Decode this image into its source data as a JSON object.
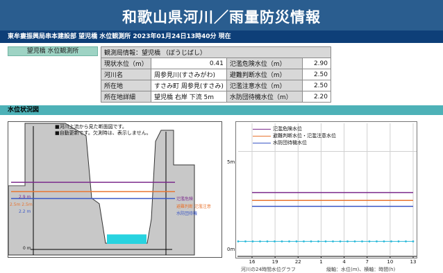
{
  "page": {
    "title": "和歌山県河川／雨量防災情報",
    "subtitle": "東牟婁振興局串本建設部 望児橋 水位観測所 2023年01月24日13時40分 現在"
  },
  "station_button": "望児橋 水位観測所",
  "info": {
    "header": "観測局情報：望児橋 （ぼうじばし）",
    "rows": [
      {
        "label": "現状水位（m）",
        "value": "0.41",
        "label2": "氾濫危険水位（m）",
        "value2": "2.90"
      },
      {
        "label": "河川名",
        "value": "周参見川(すさみがわ)",
        "label2": "避難判断水位（m）",
        "value2": "2.50"
      },
      {
        "label": "所在地",
        "value": "すさみ町 周参見(すさみ)",
        "label2": "氾濫注意水位（m）",
        "value2": "2.50"
      },
      {
        "label": "所在地詳細",
        "value": "望児橋 右岸 下流 5m",
        "label2": "水防団待機水位（m）",
        "value2": "2.20"
      }
    ]
  },
  "section_title": "水位状況図",
  "cross_section": {
    "notes": [
      "■河川上流から見た断面図です。",
      "■自動更新です。欠測時は、表示しません。"
    ],
    "levels": [
      {
        "y_label": "2.9 m",
        "name": "氾濫危険",
        "value": 2.9,
        "color": "#7b2a8c"
      },
      {
        "y_label": "2.5m 2.5m",
        "name": "避難判断 氾濫注意",
        "value": 2.5,
        "color": "#e8742f"
      },
      {
        "y_label": "2.2 m",
        "name": "水防団待機",
        "value": 2.2,
        "color": "#3a57c6"
      }
    ],
    "zero_label": "0 m",
    "water_level": 0.41,
    "water_color": "#28d3e0"
  },
  "graph": {
    "legend": [
      {
        "label": "氾濫危険水位",
        "color": "#7b2a8c"
      },
      {
        "label": "避難判断水位・氾濫注意水位",
        "color": "#e8742f"
      },
      {
        "label": "水防団待機水位",
        "color": "#3a57c6"
      }
    ],
    "y_ticks": [
      "5m",
      "0m"
    ],
    "x_ticks": [
      "16",
      "19",
      "22",
      "1",
      "4",
      "7",
      "10",
      "13"
    ],
    "caption": "河川の24時間水位グラフ",
    "units": "縦軸：水位(m)、横軸：時間(h)"
  },
  "chart_data": {
    "type": "line",
    "x": [
      "16",
      "19",
      "22",
      "1",
      "4",
      "7",
      "10",
      "13"
    ],
    "series": [
      {
        "name": "氾濫危険水位",
        "values": [
          2.9,
          2.9,
          2.9,
          2.9,
          2.9,
          2.9,
          2.9,
          2.9
        ]
      },
      {
        "name": "避難判断水位・氾濫注意水位",
        "values": [
          2.5,
          2.5,
          2.5,
          2.5,
          2.5,
          2.5,
          2.5,
          2.5
        ]
      },
      {
        "name": "水防団待機水位",
        "values": [
          2.2,
          2.2,
          2.2,
          2.2,
          2.2,
          2.2,
          2.2,
          2.2
        ]
      }
    ],
    "observed": {
      "values": [
        0.41,
        0.41,
        0.41,
        0.41,
        0.41,
        0.41,
        0.41,
        0.41,
        0.41,
        0.41,
        0.41,
        0.41,
        0.41,
        0.41,
        0.41,
        0.41,
        0.41,
        0.41,
        0.41,
        0.41,
        0.41,
        0.41,
        0.41,
        0.41,
        0.41
      ]
    },
    "ylabel": "m",
    "ylim": [
      0,
      6.5
    ]
  }
}
